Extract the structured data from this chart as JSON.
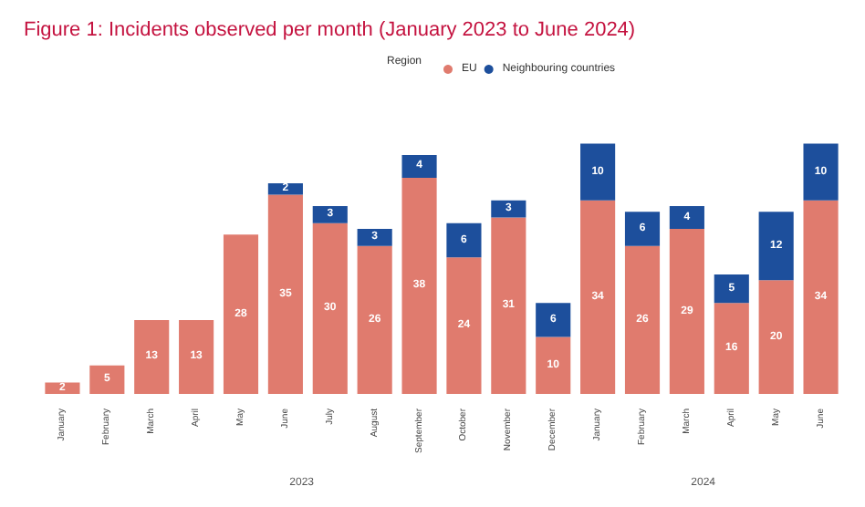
{
  "chart_data": {
    "type": "bar",
    "title": "Figure 1: Incidents observed per month (January 2023 to June 2024)",
    "legend_title": "Region",
    "stacked": true,
    "data_labels": true,
    "legend": "top",
    "categories": [
      "January",
      "February",
      "March",
      "April",
      "May",
      "June",
      "July",
      "August",
      "September",
      "October",
      "November",
      "December",
      "January",
      "February",
      "March",
      "April",
      "May",
      "June"
    ],
    "series": [
      {
        "name": "EU",
        "color": "#e07b6e",
        "values": [
          2,
          5,
          13,
          13,
          28,
          35,
          30,
          26,
          38,
          24,
          31,
          10,
          34,
          26,
          29,
          16,
          20,
          34
        ]
      },
      {
        "name": "Neighbouring countries",
        "color": "#1d4f9c",
        "values": [
          null,
          null,
          null,
          null,
          null,
          2,
          3,
          3,
          4,
          6,
          3,
          6,
          10,
          6,
          4,
          5,
          12,
          10
        ]
      }
    ],
    "annotations": [
      "2023",
      "2024"
    ]
  }
}
